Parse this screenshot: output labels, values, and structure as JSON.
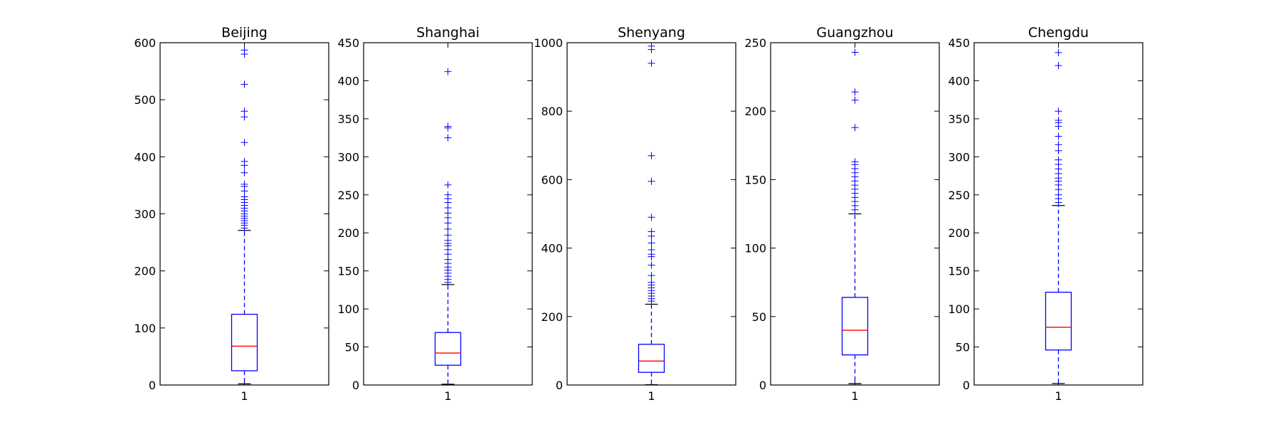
{
  "chart_data": [
    {
      "type": "box",
      "title": "Beijing",
      "categories": [
        "1"
      ],
      "ylim": [
        0,
        600
      ],
      "yticks": [
        0,
        100,
        200,
        300,
        400,
        500,
        600
      ],
      "whisker_low": 2,
      "q1": 25,
      "median": 68,
      "q3": 124,
      "whisker_high": 271,
      "outliers": [
        275,
        280,
        284,
        288,
        292,
        296,
        300,
        305,
        310,
        315,
        320,
        325,
        330,
        340,
        348,
        352,
        372,
        385,
        392,
        425,
        470,
        480,
        527,
        580,
        587
      ]
    },
    {
      "type": "box",
      "title": "Shanghai",
      "categories": [
        "1"
      ],
      "ylim": [
        0,
        450
      ],
      "yticks": [
        0,
        50,
        100,
        150,
        200,
        250,
        300,
        350,
        400,
        450
      ],
      "whisker_low": 1,
      "q1": 26,
      "median": 42,
      "q3": 69,
      "whisker_high": 132,
      "outliers": [
        135,
        139,
        143,
        147,
        151,
        155,
        160,
        165,
        172,
        178,
        183,
        186,
        190,
        197,
        205,
        213,
        220,
        226,
        233,
        240,
        245,
        250,
        263,
        325,
        338,
        340,
        412
      ]
    },
    {
      "type": "box",
      "title": "Shenyang",
      "categories": [
        "1"
      ],
      "ylim": [
        0,
        1000
      ],
      "yticks": [
        0,
        200,
        400,
        600,
        800,
        1000
      ],
      "whisker_low": 1,
      "q1": 37,
      "median": 70,
      "q3": 119,
      "whisker_high": 236,
      "outliers": [
        245,
        252,
        260,
        268,
        276,
        284,
        292,
        300,
        320,
        350,
        375,
        382,
        395,
        415,
        435,
        448,
        490,
        595,
        670,
        940,
        980,
        990
      ]
    },
    {
      "type": "box",
      "title": "Guangzhou",
      "categories": [
        "1"
      ],
      "ylim": [
        0,
        250
      ],
      "yticks": [
        0,
        50,
        100,
        150,
        200,
        250
      ],
      "whisker_low": 1,
      "q1": 22,
      "median": 40,
      "q3": 64,
      "whisker_high": 125,
      "outliers": [
        128,
        131,
        134,
        137,
        140,
        143,
        146,
        149,
        152,
        155,
        158,
        161,
        163,
        188,
        208,
        214,
        243
      ]
    },
    {
      "type": "box",
      "title": "Chengdu",
      "categories": [
        "1"
      ],
      "ylim": [
        0,
        450
      ],
      "yticks": [
        0,
        50,
        100,
        150,
        200,
        250,
        300,
        350,
        400,
        450
      ],
      "whisker_low": 2,
      "q1": 46,
      "median": 76,
      "q3": 122,
      "whisker_high": 236,
      "outliers": [
        240,
        245,
        250,
        257,
        263,
        268,
        272,
        278,
        284,
        290,
        296,
        308,
        316,
        327,
        340,
        345,
        348,
        360,
        420,
        437
      ]
    }
  ],
  "colors": {
    "box": "#0000ff",
    "median": "#ff0000",
    "whisker_cap": "#000000",
    "outlier": "#0000ff",
    "axes": "#000000"
  }
}
